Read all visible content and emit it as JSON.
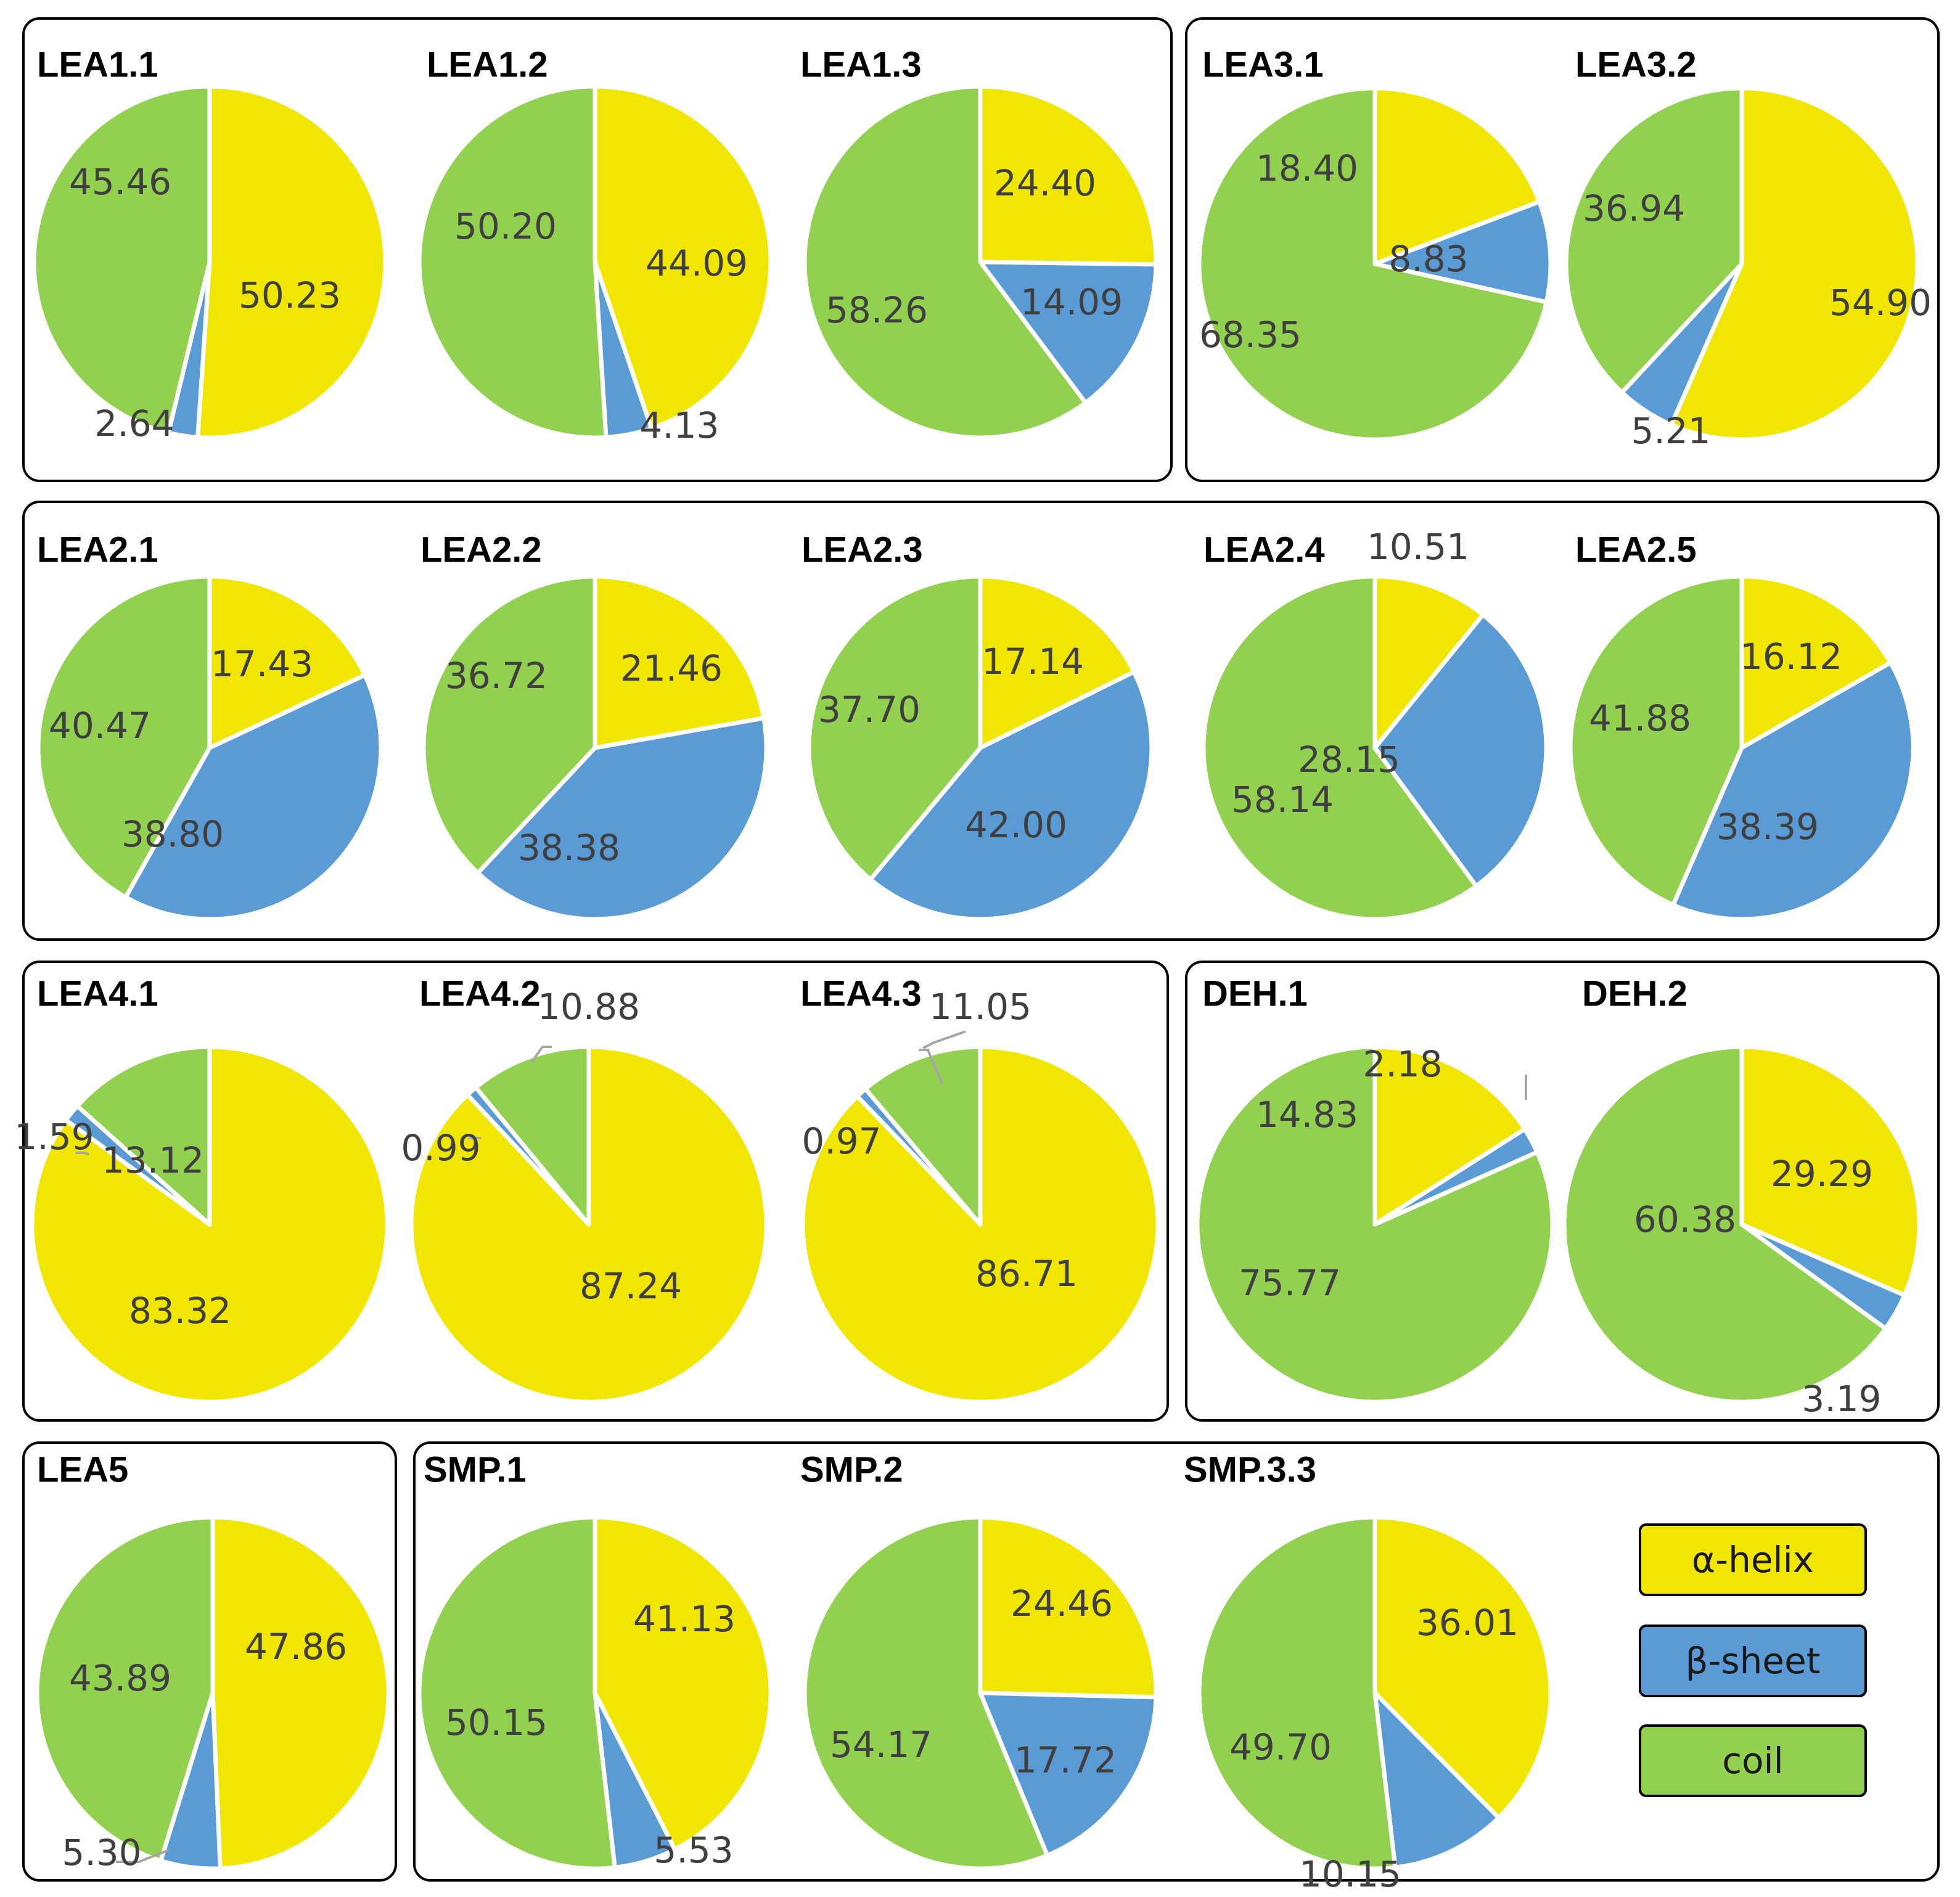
{
  "colors": {
    "helix": "#f0e600",
    "sheet": "#5b9bd5",
    "coil": "#92d050"
  },
  "legend": {
    "helix": "α-helix",
    "sheet": "β-sheet",
    "coil": "coil"
  },
  "chart_data": [
    {
      "type": "pie",
      "title": "LEA1.1",
      "labels": [
        "α-helix",
        "β-sheet",
        "coil"
      ],
      "values": [
        50.23,
        2.64,
        45.46
      ],
      "label_text": [
        "50.23",
        "2.64",
        "45.46"
      ]
    },
    {
      "type": "pie",
      "title": "LEA1.2",
      "labels": [
        "α-helix",
        "β-sheet",
        "coil"
      ],
      "values": [
        44.09,
        4.13,
        50.2
      ],
      "label_text": [
        "44.09",
        "4.13",
        "50.20"
      ]
    },
    {
      "type": "pie",
      "title": "LEA1.3",
      "labels": [
        "α-helix",
        "β-sheet",
        "coil"
      ],
      "values": [
        24.4,
        14.09,
        58.26
      ],
      "label_text": [
        "24.40",
        "14.09",
        "58.26"
      ]
    },
    {
      "type": "pie",
      "title": "LEA3.1",
      "labels": [
        "α-helix",
        "β-sheet",
        "coil"
      ],
      "values": [
        18.4,
        8.83,
        68.35
      ],
      "label_text": [
        "18.40",
        "8.83",
        "68.35"
      ]
    },
    {
      "type": "pie",
      "title": "LEA3.2",
      "labels": [
        "α-helix",
        "β-sheet",
        "coil"
      ],
      "values": [
        54.9,
        5.21,
        36.94
      ],
      "label_text": [
        "54.90",
        "5.21",
        "36.94"
      ]
    },
    {
      "type": "pie",
      "title": "LEA2.1",
      "labels": [
        "α-helix",
        "β-sheet",
        "coil"
      ],
      "values": [
        17.43,
        38.8,
        40.47
      ],
      "label_text": [
        "17.43",
        "38.80",
        "40.47"
      ]
    },
    {
      "type": "pie",
      "title": "LEA2.2",
      "labels": [
        "α-helix",
        "β-sheet",
        "coil"
      ],
      "values": [
        21.46,
        38.38,
        36.72
      ],
      "label_text": [
        "21.46",
        "38.38",
        "36.72"
      ]
    },
    {
      "type": "pie",
      "title": "LEA2.3",
      "labels": [
        "α-helix",
        "β-sheet",
        "coil"
      ],
      "values": [
        17.14,
        42.0,
        37.7
      ],
      "label_text": [
        "17.14",
        "42.00",
        "37.70"
      ]
    },
    {
      "type": "pie",
      "title": "LEA2.4",
      "labels": [
        "α-helix",
        "β-sheet",
        "coil"
      ],
      "values": [
        10.51,
        28.15,
        58.14
      ],
      "label_text": [
        "10.51",
        "28.15",
        "58.14"
      ]
    },
    {
      "type": "pie",
      "title": "LEA2.5",
      "labels": [
        "α-helix",
        "β-sheet",
        "coil"
      ],
      "values": [
        16.12,
        38.39,
        41.88
      ],
      "label_text": [
        "16.12",
        "38.39",
        "41.88"
      ]
    },
    {
      "type": "pie",
      "title": "LEA4.1",
      "labels": [
        "α-helix",
        "β-sheet",
        "coil"
      ],
      "values": [
        83.32,
        1.59,
        13.12
      ],
      "label_text": [
        "83.32",
        "1.59",
        "13.12"
      ]
    },
    {
      "type": "pie",
      "title": "LEA4.2",
      "labels": [
        "α-helix",
        "β-sheet",
        "coil"
      ],
      "values": [
        87.24,
        0.99,
        10.88
      ],
      "label_text": [
        "87.24",
        "0.99",
        "10.88"
      ]
    },
    {
      "type": "pie",
      "title": "LEA4.3",
      "labels": [
        "α-helix",
        "β-sheet",
        "coil"
      ],
      "values": [
        86.71,
        0.97,
        11.05
      ],
      "label_text": [
        "86.71",
        "0.97",
        "11.05"
      ]
    },
    {
      "type": "pie",
      "title": "DEH.1",
      "labels": [
        "α-helix",
        "β-sheet",
        "coil"
      ],
      "values": [
        14.83,
        2.18,
        75.77
      ],
      "label_text": [
        "14.83",
        "2.18",
        "75.77"
      ]
    },
    {
      "type": "pie",
      "title": "DEH.2",
      "labels": [
        "α-helix",
        "β-sheet",
        "coil"
      ],
      "values": [
        29.29,
        3.19,
        60.38
      ],
      "label_text": [
        "29.29",
        "3.19",
        "60.38"
      ]
    },
    {
      "type": "pie",
      "title": "LEA5",
      "labels": [
        "α-helix",
        "β-sheet",
        "coil"
      ],
      "values": [
        47.86,
        5.3,
        43.89
      ],
      "label_text": [
        "47.86",
        "5.30",
        "43.89"
      ]
    },
    {
      "type": "pie",
      "title": "SMP.1",
      "labels": [
        "α-helix",
        "β-sheet",
        "coil"
      ],
      "values": [
        41.13,
        5.53,
        50.15
      ],
      "label_text": [
        "41.13",
        "5.53",
        "50.15"
      ]
    },
    {
      "type": "pie",
      "title": "SMP.2",
      "labels": [
        "α-helix",
        "β-sheet",
        "coil"
      ],
      "values": [
        24.46,
        17.72,
        54.17
      ],
      "label_text": [
        "24.46",
        "17.72",
        "54.17"
      ]
    },
    {
      "type": "pie",
      "title": "SMP.3.3",
      "labels": [
        "α-helix",
        "β-sheet",
        "coil"
      ],
      "values": [
        36.01,
        10.15,
        49.7
      ],
      "label_text": [
        "36.01",
        "10.15",
        "49.70"
      ]
    }
  ]
}
